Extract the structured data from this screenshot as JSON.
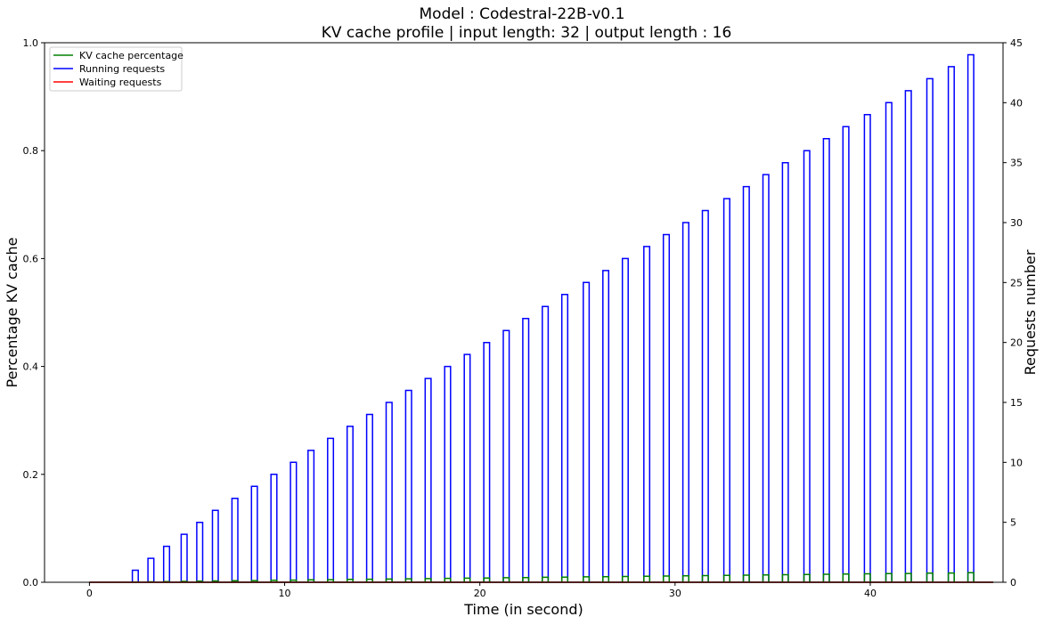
{
  "chart_data": {
    "type": "line",
    "title": "Model : Codestral-22B-v0.1",
    "subtitle": "KV cache profile | input length: 32 | output length : 16",
    "xlabel": "Time (in second)",
    "ylabel": "Percentage KV cache",
    "y2label": "Requests number",
    "xlim": [
      -2.3,
      46.8
    ],
    "ylim": [
      0,
      1.0
    ],
    "y2lim": [
      0,
      45
    ],
    "x_ticks": [
      "0",
      "10",
      "20",
      "30",
      "40"
    ],
    "y_ticks": [
      "0.0",
      "0.2",
      "0.4",
      "0.6",
      "0.8",
      "1.0"
    ],
    "y2_ticks": [
      "0",
      "5",
      "10",
      "15",
      "20",
      "25",
      "30",
      "35",
      "40",
      "45"
    ],
    "legend_position": "upper-left",
    "grid": false,
    "pulse_width": 0.3,
    "series": [
      {
        "name": "KV cache percentage",
        "axis": "left",
        "color": "#008000",
        "style": "pulses",
        "pulse_start": [
          2.2,
          3.0,
          3.8,
          4.7,
          5.5,
          6.3,
          7.3,
          8.3,
          9.3,
          10.3,
          11.2,
          12.2,
          13.2,
          14.2,
          15.2,
          16.2,
          17.2,
          18.2,
          19.2,
          20.2,
          21.2,
          22.2,
          23.2,
          24.2,
          25.3,
          26.3,
          27.3,
          28.4,
          29.4,
          30.4,
          31.4,
          32.5,
          33.5,
          34.5,
          35.5,
          36.6,
          37.6,
          38.6,
          39.7,
          40.8,
          41.8,
          42.9,
          44.0,
          45.0
        ],
        "values": [
          0.0004,
          0.0008,
          0.0012,
          0.0016,
          0.002,
          0.0024,
          0.0028,
          0.0032,
          0.0036,
          0.004,
          0.0044,
          0.0048,
          0.0052,
          0.0056,
          0.006,
          0.0064,
          0.0068,
          0.0072,
          0.0076,
          0.008,
          0.0084,
          0.0088,
          0.0092,
          0.0096,
          0.01,
          0.0104,
          0.0108,
          0.0112,
          0.0116,
          0.012,
          0.0124,
          0.0128,
          0.0132,
          0.0136,
          0.014,
          0.0144,
          0.0148,
          0.0152,
          0.0156,
          0.016,
          0.0164,
          0.0168,
          0.0172,
          0.0176
        ]
      },
      {
        "name": "Running requests",
        "axis": "right",
        "color": "#0000ff",
        "style": "pulses",
        "pulse_start": [
          2.2,
          3.0,
          3.8,
          4.7,
          5.5,
          6.3,
          7.3,
          8.3,
          9.3,
          10.3,
          11.2,
          12.2,
          13.2,
          14.2,
          15.2,
          16.2,
          17.2,
          18.2,
          19.2,
          20.2,
          21.2,
          22.2,
          23.2,
          24.2,
          25.3,
          26.3,
          27.3,
          28.4,
          29.4,
          30.4,
          31.4,
          32.5,
          33.5,
          34.5,
          35.5,
          36.6,
          37.6,
          38.6,
          39.7,
          40.8,
          41.8,
          42.9,
          44.0,
          45.0
        ],
        "values": [
          1,
          2,
          3,
          4,
          5,
          6,
          7,
          8,
          9,
          10,
          11,
          12,
          13,
          14,
          15,
          16,
          17,
          18,
          19,
          20,
          21,
          22,
          23,
          24,
          25,
          26,
          27,
          28,
          29,
          30,
          31,
          32,
          33,
          34,
          35,
          36,
          37,
          38,
          39,
          40,
          41,
          42,
          43,
          44
        ]
      },
      {
        "name": "Waiting requests",
        "axis": "right",
        "color": "#ff0000",
        "style": "line",
        "x": [
          0,
          46.3
        ],
        "values": [
          0,
          0
        ]
      }
    ]
  }
}
